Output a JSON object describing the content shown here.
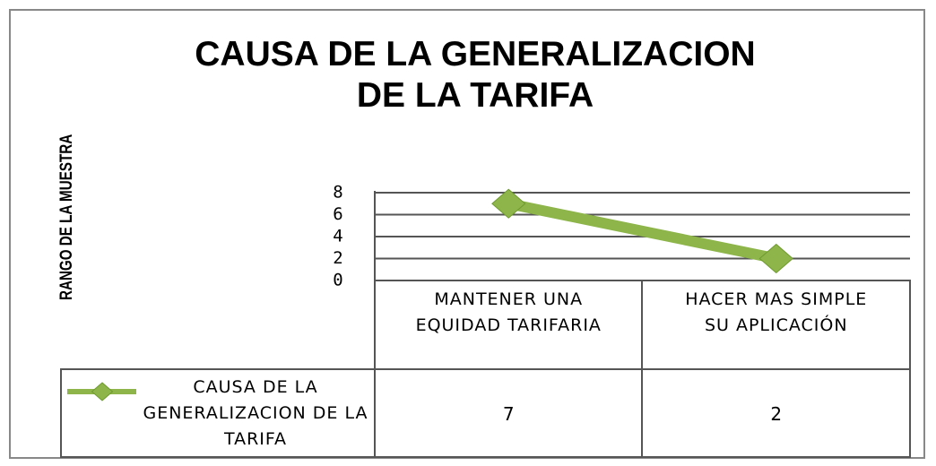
{
  "chart_data": {
    "type": "line",
    "title": "CAUSA DE LA GENERALIZACION DE LA TARIFA",
    "y_label": "RANGO DE LA MUESTRA",
    "categories": [
      "MANTENER UNA EQUIDAD TARIFARIA",
      "HACER MAS SIMPLE SU APLICACIÓN"
    ],
    "series": [
      {
        "name": "CAUSA DE LA GENERALIZACION DE LA TARIFA",
        "color": "#8db54a",
        "values": [
          7,
          2
        ]
      }
    ],
    "ylim": [
      0,
      8
    ],
    "yticks": [
      0,
      2,
      4,
      6,
      8
    ],
    "grid": true,
    "data_table": true
  }
}
